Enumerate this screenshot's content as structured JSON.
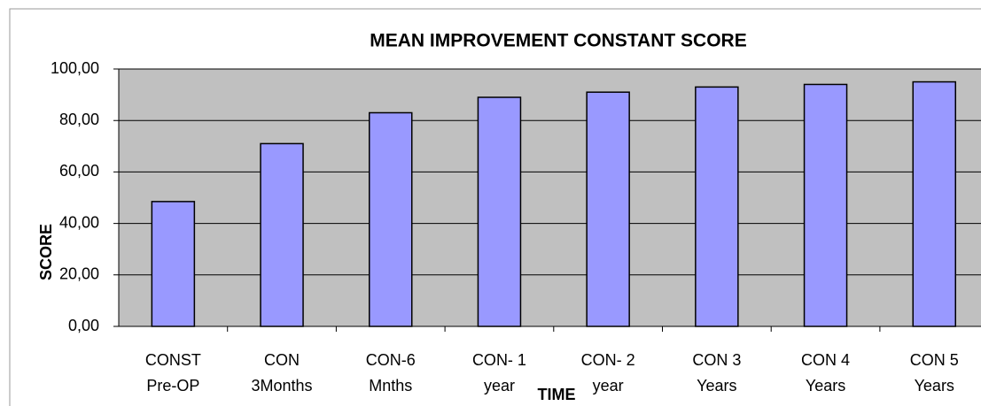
{
  "chart_data": {
    "type": "bar",
    "title": "MEAN IMPROVEMENT CONSTANT SCORE",
    "x_label": "TIME",
    "y_label": "SCORE",
    "categories": [
      [
        "CONST",
        "Pre-OP"
      ],
      [
        "CON",
        "3Months"
      ],
      [
        "CON-6",
        "Mnths"
      ],
      [
        "CON- 1",
        "year"
      ],
      [
        "CON- 2",
        "year"
      ],
      [
        "CON 3",
        "Years"
      ],
      [
        "CON 4",
        "Years"
      ],
      [
        "CON 5",
        "Years"
      ]
    ],
    "values": [
      48.5,
      71,
      83,
      89,
      91,
      93,
      94,
      95
    ],
    "color": "#9999ff",
    "ylim": [
      0,
      100
    ],
    "yticks": [
      {
        "value": 0,
        "label": "0,00"
      },
      {
        "value": 20,
        "label": "20,00"
      },
      {
        "value": 40,
        "label": "40,00"
      },
      {
        "value": 60,
        "label": "60,00"
      },
      {
        "value": 80,
        "label": "80,00"
      },
      {
        "value": 100,
        "label": "100,00"
      }
    ],
    "grid": true
  }
}
